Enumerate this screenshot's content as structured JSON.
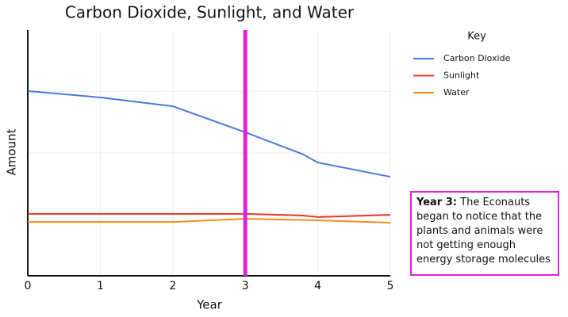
{
  "chart_data": {
    "type": "line",
    "title": "Carbon Dioxide, Sunlight, and Water",
    "x_label": "Year",
    "y_label": "Amount",
    "x": [
      0,
      1,
      2,
      3,
      3.8,
      4,
      5
    ],
    "xlim": [
      0,
      5
    ],
    "xticks": [
      0,
      1,
      2,
      3,
      4,
      5
    ],
    "ylim": [
      0,
      100
    ],
    "yticks": [
      25,
      50,
      75
    ],
    "grid": true,
    "legend_title": "Key",
    "series": [
      {
        "name": "Carbon Dioxide",
        "color": "#4a76e8",
        "values": [
          75.2,
          72.6,
          69,
          58.4,
          49.4,
          46.1,
          40.3
        ]
      },
      {
        "name": "Sunlight",
        "color": "#e03a2c",
        "values": [
          25.2,
          25.2,
          25.2,
          25.2,
          24.5,
          23.9,
          24.8
        ]
      },
      {
        "name": "Water",
        "color": "#f0901c",
        "values": [
          21.9,
          21.9,
          21.9,
          23.2,
          22.7,
          22.6,
          21.6
        ]
      }
    ],
    "marker_x": 3,
    "marker_color": "#e020e0",
    "annotation": {
      "label": "Year 3:",
      "text": "The Econauts began to notice that the plants and animals were not getting enough energy storage molecules"
    }
  }
}
